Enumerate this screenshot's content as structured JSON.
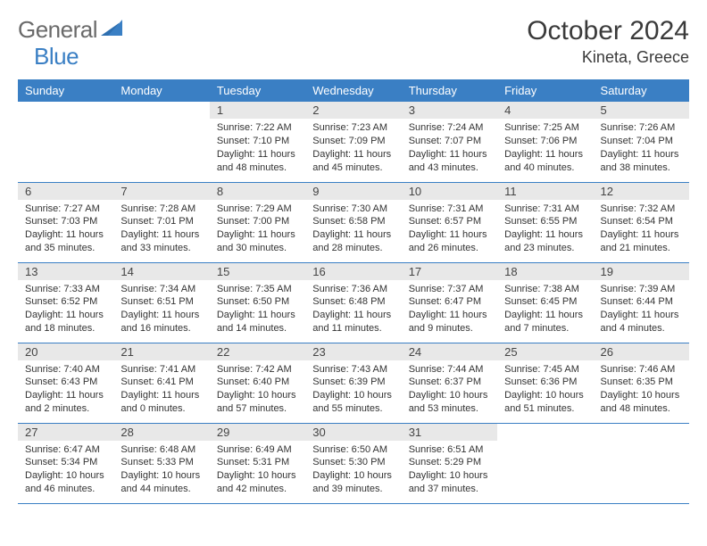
{
  "brand": {
    "part1": "General",
    "part2": "Blue"
  },
  "title": "October 2024",
  "location": "Kineta, Greece",
  "colors": {
    "header_bg": "#3a7fc4",
    "header_text": "#ffffff",
    "daynum_bg": "#e8e8e8",
    "text": "#333333",
    "border": "#3a7fc4",
    "background": "#ffffff"
  },
  "typography": {
    "title_fontsize": 30,
    "location_fontsize": 18,
    "weekday_fontsize": 13,
    "daynum_fontsize": 13,
    "body_fontsize": 11,
    "font_family": "Arial"
  },
  "layout": {
    "columns": 7,
    "rows": 5,
    "first_day_column": 2
  },
  "weekdays": [
    "Sunday",
    "Monday",
    "Tuesday",
    "Wednesday",
    "Thursday",
    "Friday",
    "Saturday"
  ],
  "days": [
    {
      "n": 1,
      "sunrise": "7:22 AM",
      "sunset": "7:10 PM",
      "daylight": "11 hours and 48 minutes."
    },
    {
      "n": 2,
      "sunrise": "7:23 AM",
      "sunset": "7:09 PM",
      "daylight": "11 hours and 45 minutes."
    },
    {
      "n": 3,
      "sunrise": "7:24 AM",
      "sunset": "7:07 PM",
      "daylight": "11 hours and 43 minutes."
    },
    {
      "n": 4,
      "sunrise": "7:25 AM",
      "sunset": "7:06 PM",
      "daylight": "11 hours and 40 minutes."
    },
    {
      "n": 5,
      "sunrise": "7:26 AM",
      "sunset": "7:04 PM",
      "daylight": "11 hours and 38 minutes."
    },
    {
      "n": 6,
      "sunrise": "7:27 AM",
      "sunset": "7:03 PM",
      "daylight": "11 hours and 35 minutes."
    },
    {
      "n": 7,
      "sunrise": "7:28 AM",
      "sunset": "7:01 PM",
      "daylight": "11 hours and 33 minutes."
    },
    {
      "n": 8,
      "sunrise": "7:29 AM",
      "sunset": "7:00 PM",
      "daylight": "11 hours and 30 minutes."
    },
    {
      "n": 9,
      "sunrise": "7:30 AM",
      "sunset": "6:58 PM",
      "daylight": "11 hours and 28 minutes."
    },
    {
      "n": 10,
      "sunrise": "7:31 AM",
      "sunset": "6:57 PM",
      "daylight": "11 hours and 26 minutes."
    },
    {
      "n": 11,
      "sunrise": "7:31 AM",
      "sunset": "6:55 PM",
      "daylight": "11 hours and 23 minutes."
    },
    {
      "n": 12,
      "sunrise": "7:32 AM",
      "sunset": "6:54 PM",
      "daylight": "11 hours and 21 minutes."
    },
    {
      "n": 13,
      "sunrise": "7:33 AM",
      "sunset": "6:52 PM",
      "daylight": "11 hours and 18 minutes."
    },
    {
      "n": 14,
      "sunrise": "7:34 AM",
      "sunset": "6:51 PM",
      "daylight": "11 hours and 16 minutes."
    },
    {
      "n": 15,
      "sunrise": "7:35 AM",
      "sunset": "6:50 PM",
      "daylight": "11 hours and 14 minutes."
    },
    {
      "n": 16,
      "sunrise": "7:36 AM",
      "sunset": "6:48 PM",
      "daylight": "11 hours and 11 minutes."
    },
    {
      "n": 17,
      "sunrise": "7:37 AM",
      "sunset": "6:47 PM",
      "daylight": "11 hours and 9 minutes."
    },
    {
      "n": 18,
      "sunrise": "7:38 AM",
      "sunset": "6:45 PM",
      "daylight": "11 hours and 7 minutes."
    },
    {
      "n": 19,
      "sunrise": "7:39 AM",
      "sunset": "6:44 PM",
      "daylight": "11 hours and 4 minutes."
    },
    {
      "n": 20,
      "sunrise": "7:40 AM",
      "sunset": "6:43 PM",
      "daylight": "11 hours and 2 minutes."
    },
    {
      "n": 21,
      "sunrise": "7:41 AM",
      "sunset": "6:41 PM",
      "daylight": "11 hours and 0 minutes."
    },
    {
      "n": 22,
      "sunrise": "7:42 AM",
      "sunset": "6:40 PM",
      "daylight": "10 hours and 57 minutes."
    },
    {
      "n": 23,
      "sunrise": "7:43 AM",
      "sunset": "6:39 PM",
      "daylight": "10 hours and 55 minutes."
    },
    {
      "n": 24,
      "sunrise": "7:44 AM",
      "sunset": "6:37 PM",
      "daylight": "10 hours and 53 minutes."
    },
    {
      "n": 25,
      "sunrise": "7:45 AM",
      "sunset": "6:36 PM",
      "daylight": "10 hours and 51 minutes."
    },
    {
      "n": 26,
      "sunrise": "7:46 AM",
      "sunset": "6:35 PM",
      "daylight": "10 hours and 48 minutes."
    },
    {
      "n": 27,
      "sunrise": "6:47 AM",
      "sunset": "5:34 PM",
      "daylight": "10 hours and 46 minutes."
    },
    {
      "n": 28,
      "sunrise": "6:48 AM",
      "sunset": "5:33 PM",
      "daylight": "10 hours and 44 minutes."
    },
    {
      "n": 29,
      "sunrise": "6:49 AM",
      "sunset": "5:31 PM",
      "daylight": "10 hours and 42 minutes."
    },
    {
      "n": 30,
      "sunrise": "6:50 AM",
      "sunset": "5:30 PM",
      "daylight": "10 hours and 39 minutes."
    },
    {
      "n": 31,
      "sunrise": "6:51 AM",
      "sunset": "5:29 PM",
      "daylight": "10 hours and 37 minutes."
    }
  ],
  "labels": {
    "sunrise": "Sunrise:",
    "sunset": "Sunset:",
    "daylight": "Daylight:"
  }
}
